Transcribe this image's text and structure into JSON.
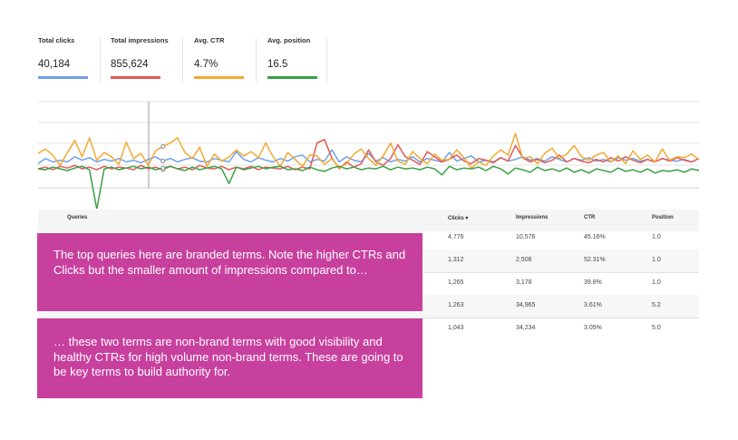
{
  "metrics": [
    {
      "label": "Total clicks",
      "value": "40,184",
      "color": "#6fa1e8"
    },
    {
      "label": "Total impressions",
      "value": "855,624",
      "color": "#e05a57"
    },
    {
      "label": "Avg. CTR",
      "value": "4.7%",
      "color": "#f4a830"
    },
    {
      "label": "Avg. position",
      "value": "16.5",
      "color": "#3aa045"
    }
  ],
  "chart_data": {
    "type": "line",
    "grid": true,
    "x": [
      0,
      1,
      2,
      3,
      4,
      5,
      6,
      7,
      8,
      9,
      10,
      11,
      12,
      13,
      14,
      15,
      16,
      17,
      18,
      19,
      20,
      21,
      22,
      23,
      24,
      25,
      26,
      27,
      28,
      29,
      30,
      31,
      32,
      33,
      34,
      35,
      36,
      37,
      38,
      39,
      40,
      41,
      42,
      43,
      44,
      45,
      46,
      47,
      48,
      49,
      50,
      51,
      52,
      53,
      54,
      55,
      56,
      57,
      58,
      59,
      60,
      61,
      62,
      63,
      64,
      65,
      66,
      67,
      68,
      69,
      70,
      71,
      72,
      73,
      74,
      75,
      76,
      77,
      78,
      79,
      80,
      81,
      82,
      83,
      84,
      85,
      86,
      87,
      88,
      89,
      90
    ],
    "series": [
      {
        "color": "#6fa1e8",
        "values": [
          0.28,
          0.34,
          0.3,
          0.32,
          0.3,
          0.36,
          0.32,
          0.35,
          0.3,
          0.33,
          0.31,
          0.34,
          0.3,
          0.32,
          0.29,
          0.33,
          0.36,
          0.31,
          0.34,
          0.3,
          0.33,
          0.35,
          0.31,
          0.3,
          0.34,
          0.32,
          0.3,
          0.42,
          0.33,
          0.3,
          0.35,
          0.32,
          0.3,
          0.34,
          0.31,
          0.36,
          0.38,
          0.3,
          0.33,
          0.31,
          0.44,
          0.3,
          0.36,
          0.32,
          0.3,
          0.4,
          0.31,
          0.35,
          0.3,
          0.33,
          0.31,
          0.36,
          0.3,
          0.34,
          0.32,
          0.3,
          0.41,
          0.31,
          0.34,
          0.37,
          0.3,
          0.32,
          0.3,
          0.35,
          0.31,
          0.33,
          0.36,
          0.32,
          0.34,
          0.31,
          0.36,
          0.33,
          0.3,
          0.34,
          0.32,
          0.35,
          0.31,
          0.33,
          0.3,
          0.35,
          0.32,
          0.34,
          0.31,
          0.33,
          0.3,
          0.34,
          0.32,
          0.31,
          0.33,
          0.3,
          0.34
        ]
      },
      {
        "color": "#e05a57",
        "values": [
          0.22,
          0.24,
          0.21,
          0.25,
          0.23,
          0.26,
          0.22,
          0.24,
          0.21,
          0.25,
          0.22,
          0.24,
          0.23,
          0.21,
          0.26,
          0.22,
          0.24,
          0.21,
          0.25,
          0.22,
          0.24,
          0.21,
          0.26,
          0.23,
          0.22,
          0.25,
          0.21,
          0.24,
          0.22,
          0.25,
          0.21,
          0.24,
          0.23,
          0.22,
          0.25,
          0.21,
          0.24,
          0.22,
          0.52,
          0.56,
          0.35,
          0.22,
          0.3,
          0.24,
          0.28,
          0.44,
          0.3,
          0.26,
          0.34,
          0.5,
          0.36,
          0.32,
          0.27,
          0.42,
          0.36,
          0.3,
          0.33,
          0.38,
          0.31,
          0.28,
          0.34,
          0.32,
          0.29,
          0.35,
          0.31,
          0.49,
          0.35,
          0.3,
          0.33,
          0.29,
          0.32,
          0.38,
          0.3,
          0.34,
          0.31,
          0.29,
          0.33,
          0.3,
          0.35,
          0.31,
          0.36,
          0.32,
          0.29,
          0.33,
          0.3,
          0.34,
          0.31,
          0.35,
          0.32,
          0.3,
          0.34
        ]
      },
      {
        "color": "#f4a830",
        "values": [
          0.4,
          0.45,
          0.38,
          0.26,
          0.41,
          0.55,
          0.36,
          0.58,
          0.32,
          0.41,
          0.36,
          0.27,
          0.53,
          0.34,
          0.4,
          0.26,
          0.43,
          0.48,
          0.52,
          0.58,
          0.41,
          0.34,
          0.47,
          0.25,
          0.39,
          0.31,
          0.36,
          0.44,
          0.37,
          0.42,
          0.35,
          0.52,
          0.36,
          0.25,
          0.41,
          0.33,
          0.25,
          0.38,
          0.37,
          0.27,
          0.34,
          0.23,
          0.28,
          0.39,
          0.45,
          0.34,
          0.26,
          0.37,
          0.52,
          0.31,
          0.27,
          0.42,
          0.34,
          0.28,
          0.39,
          0.32,
          0.33,
          0.44,
          0.35,
          0.23,
          0.3,
          0.26,
          0.37,
          0.44,
          0.38,
          0.63,
          0.34,
          0.36,
          0.28,
          0.4,
          0.46,
          0.34,
          0.39,
          0.49,
          0.36,
          0.32,
          0.38,
          0.41,
          0.3,
          0.37,
          0.28,
          0.43,
          0.33,
          0.38,
          0.3,
          0.45,
          0.32,
          0.36,
          0.35,
          0.39,
          0.33
        ]
      },
      {
        "color": "#3aa045",
        "values": [
          0.22,
          0.21,
          0.24,
          0.22,
          0.2,
          0.23,
          0.25,
          0.21,
          -0.25,
          0.22,
          0.24,
          0.21,
          0.23,
          0.25,
          0.22,
          0.24,
          0.21,
          0.23,
          0.25,
          0.22,
          0.2,
          0.24,
          0.21,
          0.23,
          0.25,
          0.22,
          0.05,
          0.24,
          0.21,
          0.23,
          0.25,
          0.22,
          0.24,
          0.25,
          0.21,
          0.22,
          0.2,
          0.24,
          0.21,
          0.19,
          0.23,
          0.25,
          0.22,
          0.24,
          0.21,
          0.23,
          0.22,
          0.25,
          0.21,
          0.24,
          0.22,
          0.23,
          0.21,
          0.24,
          0.22,
          0.15,
          0.25,
          0.21,
          0.23,
          0.22,
          0.24,
          0.2,
          0.25,
          0.22,
          0.16,
          0.23,
          0.21,
          0.18,
          0.24,
          0.2,
          0.22,
          0.19,
          0.23,
          0.18,
          0.21,
          0.17,
          0.22,
          0.2,
          0.18,
          0.23,
          0.19,
          0.21,
          0.18,
          0.22,
          0.17,
          0.2,
          0.19,
          0.21,
          0.18,
          0.22,
          0.2
        ]
      }
    ]
  },
  "table": {
    "columns": [
      "Queries",
      "Clicks ▾",
      "Impressions",
      "CTR",
      "Position"
    ],
    "rows": [
      {
        "clicks": "4,776",
        "impressions": "10,576",
        "ctr": "45.16%",
        "position": "1.0"
      },
      {
        "clicks": "1,312",
        "impressions": "2,508",
        "ctr": "52.31%",
        "position": "1.0"
      },
      {
        "clicks": "1,265",
        "impressions": "3,178",
        "ctr": "39.8%",
        "position": "1.0"
      },
      {
        "clicks": "1,263",
        "impressions": "34,965",
        "ctr": "3.61%",
        "position": "5.2"
      },
      {
        "clicks": "1,043",
        "impressions": "34,234",
        "ctr": "3.05%",
        "position": "5.0"
      }
    ]
  },
  "callouts": [
    "The top queries here are branded terms. Note the higher CTRs and Clicks but the smaller amount of impressions compared to…",
    "… these two terms are non-brand terms with good visibility and healthy CTRs for high volume non-brand terms. These are going to be key terms to build authority for."
  ]
}
